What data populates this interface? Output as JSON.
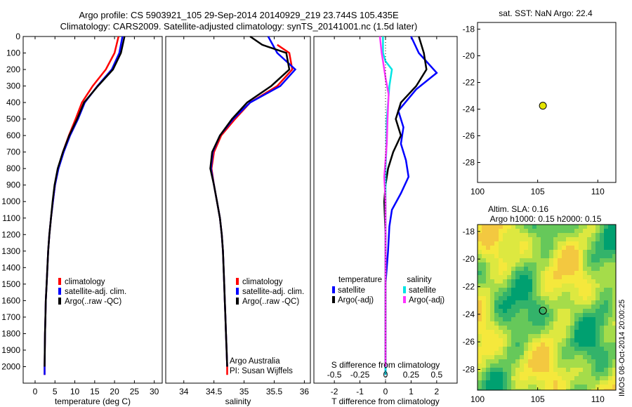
{
  "header": {
    "line1": "Argo profile: CS 5903921_105 29-Sep-2014 20140929_219 23.744S 105.435E",
    "line2": "Climatology: CARS2009. Satellite-adjusted climatology: synTS_20141001.nc (1.5d later)"
  },
  "colors": {
    "climatology": "#ff0000",
    "satellite": "#0000ff",
    "argo": "#000000",
    "satellite_s": "#00e5e5",
    "argo_s": "#ff33ff"
  },
  "chart_data": [
    {
      "type": "line",
      "xlabel": "temperature (deg C)",
      "ylabel": "",
      "xlim": [
        -3,
        32
      ],
      "ylim": [
        2100,
        0
      ],
      "xticks": [
        "0",
        "5",
        "10",
        "15",
        "20",
        "25",
        "30"
      ],
      "yticks": [
        "0",
        "100",
        "200",
        "300",
        "400",
        "500",
        "600",
        "700",
        "800",
        "900",
        "1000",
        "1100",
        "1200",
        "1300",
        "1400",
        "1500",
        "1600",
        "1700",
        "1800",
        "1900",
        "2000"
      ],
      "legend_placement": "lower-middle",
      "series": [
        {
          "name": "climatology",
          "color": "#ff0000",
          "x": [
            21.0,
            20.0,
            17.8,
            14.5,
            11.8,
            10.2,
            8.5,
            7.0,
            5.8,
            5.0,
            4.5,
            4.0,
            3.6,
            3.3,
            3.1,
            2.9,
            2.7,
            2.6,
            2.5,
            2.45,
            2.4,
            2.4
          ],
          "y": [
            0,
            100,
            200,
            300,
            400,
            500,
            600,
            700,
            800,
            900,
            1000,
            1100,
            1200,
            1300,
            1400,
            1500,
            1600,
            1700,
            1800,
            1900,
            2000,
            2050
          ]
        },
        {
          "name": "satellite-adj. clim.",
          "color": "#0000ff",
          "x": [
            22.0,
            21.2,
            19.3,
            15.7,
            12.5,
            10.8,
            8.8,
            7.2,
            5.9,
            5.0,
            4.5,
            4.0,
            3.6,
            3.3,
            3.1,
            2.9,
            2.7,
            2.6,
            2.5,
            2.45,
            2.4,
            2.4
          ],
          "y": [
            0,
            100,
            200,
            300,
            400,
            500,
            600,
            700,
            800,
            900,
            1000,
            1100,
            1200,
            1300,
            1400,
            1500,
            1600,
            1700,
            1800,
            1900,
            2000,
            2050
          ]
        },
        {
          "name": "Argo(..raw -QC)",
          "color": "#000000",
          "x": [
            22.5,
            21.6,
            19.6,
            15.8,
            12.3,
            10.6,
            8.6,
            7.0,
            5.7,
            4.9,
            4.4,
            4.0,
            3.6,
            3.3,
            3.1,
            2.9,
            2.7,
            2.6,
            2.5,
            2.45,
            2.4
          ],
          "y": [
            0,
            100,
            200,
            300,
            400,
            500,
            600,
            700,
            800,
            900,
            1000,
            1100,
            1200,
            1300,
            1400,
            1500,
            1600,
            1700,
            1800,
            1900,
            2000
          ]
        }
      ]
    },
    {
      "type": "line",
      "xlabel": "salinity",
      "ylabel": "",
      "xlim": [
        33.7,
        36.1
      ],
      "ylim": [
        2100,
        0
      ],
      "xticks": [
        "34",
        "34.5",
        "35",
        "35.5",
        "36"
      ],
      "legend_placement": "lower-middle",
      "annotation": [
        "Argo Australia",
        "PI: Susan Wijffels"
      ],
      "series": [
        {
          "name": "climatology",
          "color": "#ff0000",
          "x": [
            35.55,
            35.75,
            35.8,
            35.55,
            35.1,
            34.85,
            34.62,
            34.5,
            34.46,
            34.5,
            34.55,
            34.6,
            34.63,
            34.65,
            34.66,
            34.67,
            34.68,
            34.69,
            34.7,
            34.71,
            34.72,
            34.72
          ],
          "y": [
            50,
            100,
            200,
            300,
            400,
            500,
            600,
            700,
            800,
            900,
            1000,
            1100,
            1200,
            1300,
            1400,
            1500,
            1600,
            1700,
            1800,
            1900,
            2000,
            2050
          ]
        },
        {
          "name": "satellite-adj. clim.",
          "color": "#0000ff",
          "x": [
            35.4,
            35.55,
            35.85,
            35.6,
            35.1,
            34.82,
            34.6,
            34.48,
            34.45,
            34.5,
            34.55,
            34.6,
            34.63,
            34.65,
            34.66,
            34.67,
            34.68,
            34.69,
            34.7,
            34.71,
            34.72
          ],
          "y": [
            0,
            100,
            200,
            300,
            400,
            500,
            600,
            700,
            800,
            900,
            1000,
            1100,
            1200,
            1300,
            1400,
            1500,
            1600,
            1700,
            1800,
            1900,
            2000
          ]
        },
        {
          "name": "Argo(..raw -QC)",
          "color": "#000000",
          "x": [
            35.1,
            35.3,
            35.7,
            35.75,
            35.45,
            35.05,
            34.8,
            34.6,
            34.47,
            34.44,
            34.5,
            34.55,
            34.6,
            34.63,
            34.65,
            34.66,
            34.67,
            34.68,
            34.69,
            34.7,
            34.71,
            34.72
          ],
          "y": [
            0,
            50,
            100,
            200,
            300,
            400,
            500,
            600,
            700,
            800,
            900,
            1000,
            1100,
            1200,
            1300,
            1400,
            1500,
            1600,
            1700,
            1800,
            1900,
            2000
          ]
        }
      ]
    },
    {
      "type": "line",
      "xlabel": "T difference from climatology",
      "x2label": "S difference from climatology",
      "xlim": [
        -2.8,
        2.8
      ],
      "ylim": [
        2100,
        0
      ],
      "xticks": [
        "-2",
        "-1",
        "0",
        "1",
        "2"
      ],
      "x2ticks": [
        "-0.5",
        "-0.25",
        "0",
        "0.25",
        "0.5"
      ],
      "legend_headers": [
        "temperature",
        "salinity"
      ],
      "series": [
        {
          "name": "satellite",
          "quantity": "temperature",
          "color": "#0000ff",
          "x": [
            1.0,
            1.3,
            2.0,
            1.2,
            0.5,
            0.7,
            0.6,
            0.8,
            0.9,
            0.6,
            0.25,
            0.15,
            0.1,
            0.05,
            0.0,
            0.0,
            0.0,
            0.0,
            0.0,
            0.0,
            0.0
          ],
          "y": [
            0,
            100,
            220,
            320,
            450,
            550,
            650,
            750,
            850,
            950,
            1050,
            1150,
            1300,
            1400,
            1500,
            1600,
            1700,
            1800,
            1900,
            2000,
            2050
          ]
        },
        {
          "name": "Argo(-adj)",
          "quantity": "temperature",
          "color": "#000000",
          "x": [
            1.3,
            1.5,
            1.6,
            1.2,
            0.6,
            0.4,
            0.6,
            0.3,
            0.1,
            0.0,
            -0.05,
            0.0,
            0.0,
            0.0,
            0.0,
            0.0,
            0.0
          ],
          "y": [
            0,
            100,
            200,
            300,
            400,
            500,
            600,
            700,
            800,
            900,
            1000,
            1200,
            1400,
            1600,
            1800,
            1950,
            2000
          ]
        },
        {
          "name": "satellite",
          "quantity": "salinity",
          "color": "#00e5e5",
          "x": [
            -0.1,
            -0.1,
            0.0,
            0.25,
            0.15,
            0.05,
            0.03,
            0.0,
            0.0,
            0.0,
            0.0,
            0.0,
            0.0,
            0.0,
            0.0,
            0.0
          ],
          "y": [
            0,
            100,
            150,
            200,
            300,
            500,
            700,
            800,
            1000,
            1200,
            1400,
            1600,
            1800,
            1900,
            2000,
            2050
          ]
        },
        {
          "name": "Argo(-adj)",
          "quantity": "salinity",
          "color": "#ff33ff",
          "x": [
            -0.22,
            -0.15,
            -0.1,
            0.0,
            0.12,
            0.08,
            0.05,
            0.0,
            -0.05,
            0.0,
            0.0,
            0.0,
            0.0,
            0.0
          ],
          "y": [
            0,
            100,
            150,
            250,
            350,
            500,
            650,
            750,
            850,
            1000,
            1200,
            1500,
            1800,
            2000
          ]
        }
      ]
    },
    {
      "type": "scatter",
      "title": "sat. SST: NaN Argo: 22.4",
      "xlim": [
        100,
        111.5
      ],
      "ylim": [
        -29.5,
        -17.5
      ],
      "xticks": [
        "100",
        "105",
        "110"
      ],
      "yticks": [
        "-18",
        "-20",
        "-22",
        "-24",
        "-26",
        "-28"
      ],
      "points": [
        {
          "x": 105.435,
          "y": -23.744,
          "color": "#e5e500"
        }
      ]
    },
    {
      "type": "heatmap",
      "title_line1": "Altim. SLA: 0.16",
      "title_line2": "Argo h1000: 0.15 h2000: 0.15",
      "xlim": [
        100,
        111.5
      ],
      "ylim": [
        -29.5,
        -17.5
      ],
      "xticks": [
        "100",
        "105",
        "110"
      ],
      "yticks": [
        "-18",
        "-20",
        "-22",
        "-24",
        "-26",
        "-28"
      ],
      "colormap": [
        "#00a070",
        "#33b36a",
        "#66c85a",
        "#a5dc4a",
        "#dde840",
        "#f5e83c",
        "#f3c840"
      ],
      "points": [
        {
          "x": 105.435,
          "y": -23.744
        }
      ]
    }
  ],
  "temperature_panel": {
    "legend": [
      "climatology",
      "satellite-adj. clim.",
      "Argo(..raw -QC)"
    ]
  },
  "salinity_panel": {
    "legend": [
      "climatology",
      "satellite-adj. clim.",
      "Argo(..raw -QC)"
    ]
  },
  "diff_panel": {
    "legend_temperature": [
      "satellite",
      "Argo(-adj)"
    ],
    "legend_salinity": [
      "satellite",
      "Argo(-adj)"
    ]
  },
  "map_panel": {
    "stamp": "IMOS 08-Oct-2014 20:00:25"
  }
}
